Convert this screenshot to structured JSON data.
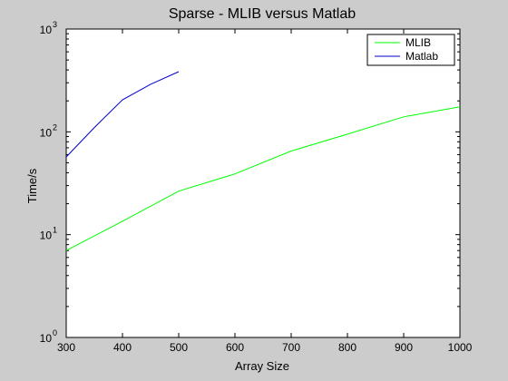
{
  "chart_data": {
    "type": "line",
    "title": "Sparse - MLIB versus Matlab",
    "xlabel": "Array Size",
    "ylabel": "Time/s",
    "xlim": [
      300,
      1000
    ],
    "ylim": [
      1,
      1000
    ],
    "y_scale": "log",
    "x_ticks": [
      300,
      400,
      500,
      600,
      700,
      800,
      900,
      1000
    ],
    "y_ticks": [
      {
        "value": 1,
        "base": "10",
        "exp": "0"
      },
      {
        "value": 10,
        "base": "10",
        "exp": "1"
      },
      {
        "value": 100,
        "base": "10",
        "exp": "2"
      },
      {
        "value": 1000,
        "base": "10",
        "exp": "3"
      }
    ],
    "grid": false,
    "legend_position": "top-right",
    "series": [
      {
        "name": "MLIB",
        "color": "#00ff00",
        "x": [
          300,
          400,
          500,
          600,
          700,
          800,
          900,
          1000
        ],
        "y": [
          7,
          13.5,
          26.5,
          39,
          65,
          95,
          140,
          175
        ]
      },
      {
        "name": "Matlab",
        "color": "#0000cc",
        "x": [
          300,
          350,
          400,
          450,
          500
        ],
        "y": [
          57,
          110,
          205,
          290,
          385
        ]
      }
    ]
  }
}
